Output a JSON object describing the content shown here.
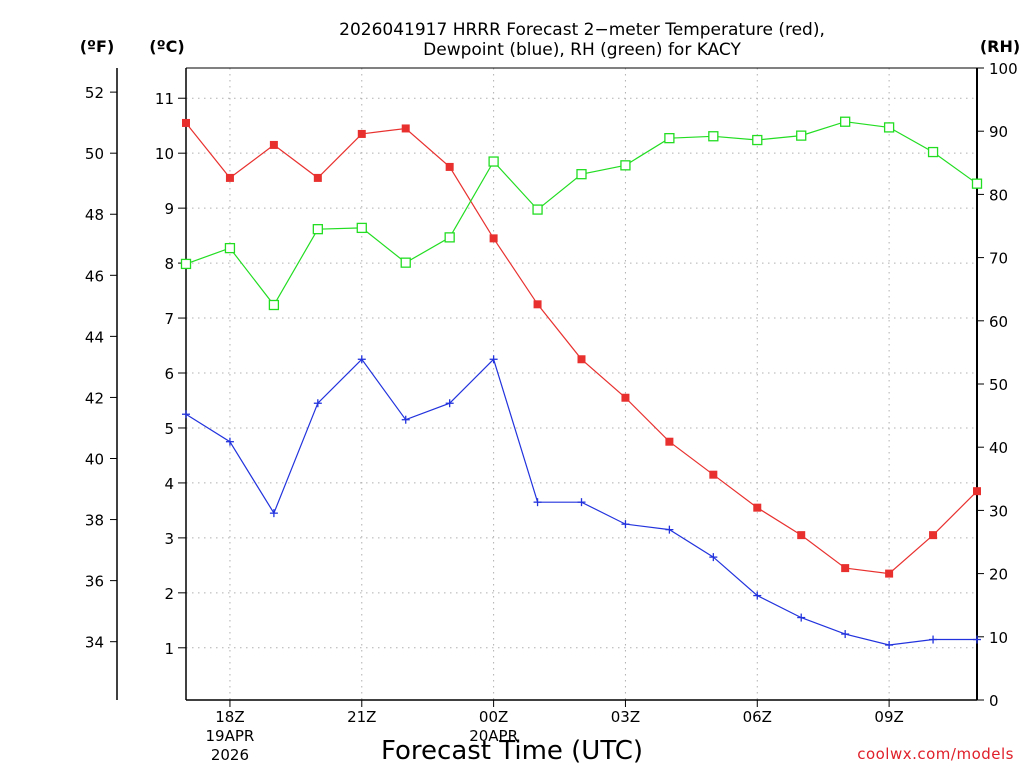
{
  "chart_data": {
    "type": "line",
    "title": {
      "line1": "2026041917 HRRR Forecast 2−meter Temperature (red),",
      "line2": "Dewpoint (blue), RH (green) for KACY"
    },
    "units": {
      "fahrenheit": "(ºF)",
      "celsius": "(ºC)",
      "rh": "(RH)"
    },
    "xlabel": "Forecast Time (UTC)",
    "credit": "coolwx.com/models",
    "x_hours": [
      0,
      1,
      2,
      3,
      4,
      5,
      6,
      7,
      8,
      9,
      10,
      11,
      12,
      13,
      14,
      15,
      16,
      17,
      18
    ],
    "x_ticks": [
      {
        "hour": 1,
        "label": "18Z",
        "sub1": "19APR",
        "sub2": "2026"
      },
      {
        "hour": 4,
        "label": "21Z",
        "sub1": "",
        "sub2": ""
      },
      {
        "hour": 7,
        "label": "00Z",
        "sub1": "20APR",
        "sub2": ""
      },
      {
        "hour": 10,
        "label": "03Z",
        "sub1": "",
        "sub2": ""
      },
      {
        "hour": 13,
        "label": "06Z",
        "sub1": "",
        "sub2": ""
      },
      {
        "hour": 16,
        "label": "09Z",
        "sub1": "",
        "sub2": ""
      }
    ],
    "celsius_axis": {
      "range": [
        0.05,
        11.55
      ],
      "ticks": [
        1,
        2,
        3,
        4,
        5,
        6,
        7,
        8,
        9,
        10,
        11
      ]
    },
    "fahrenheit_axis": {
      "ticks": [
        34,
        36,
        38,
        40,
        42,
        44,
        46,
        48,
        50,
        52
      ]
    },
    "rh_axis": {
      "range": [
        0,
        100
      ],
      "ticks": [
        0,
        10,
        20,
        30,
        40,
        50,
        60,
        70,
        80,
        90,
        100
      ]
    },
    "series": [
      {
        "name": "Temperature",
        "axis": "celsius",
        "color": "#e8312f",
        "marker": "filled-square",
        "values": [
          10.55,
          9.55,
          10.15,
          9.55,
          10.35,
          10.45,
          9.75,
          8.45,
          7.25,
          6.25,
          5.55,
          4.75,
          4.15,
          3.55,
          3.05,
          2.45,
          2.35,
          3.05,
          3.85
        ]
      },
      {
        "name": "Dewpoint",
        "axis": "celsius",
        "color": "#2233dd",
        "marker": "plus",
        "values": [
          5.25,
          4.75,
          3.45,
          5.45,
          6.25,
          5.15,
          5.45,
          6.25,
          3.65,
          3.65,
          3.25,
          3.15,
          2.65,
          1.95,
          1.55,
          1.25,
          1.05,
          1.15,
          1.15
        ]
      },
      {
        "name": "RH",
        "axis": "rh",
        "color": "#22dd22",
        "marker": "open-square",
        "values": [
          69,
          71.5,
          62.5,
          74.5,
          74.7,
          69.2,
          73.2,
          85.2,
          77.6,
          83.2,
          84.6,
          88.9,
          89.2,
          88.6,
          89.3,
          91.5,
          90.6,
          86.7,
          81.7
        ]
      }
    ]
  }
}
